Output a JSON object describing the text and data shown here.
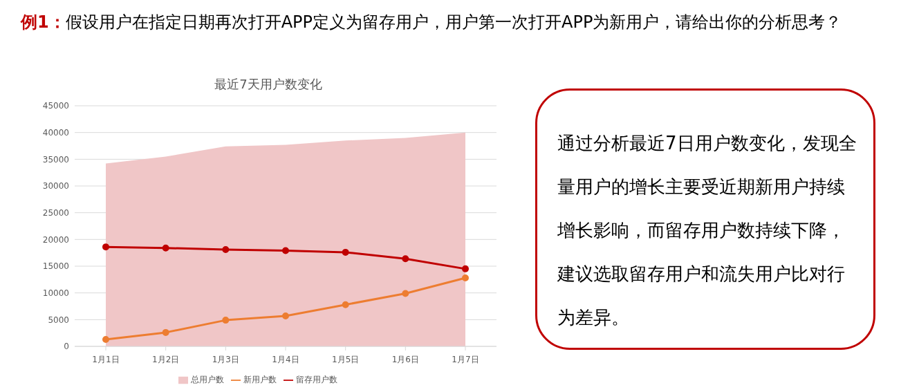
{
  "chart_data": [
    {
      "type": "line",
      "title": "最近7天用户数变化",
      "annotations": [
        "例1：",
        "假设用户在指定日期再次打开APP定义为留存用户，用户第一次打开APP为新用户，请给出你的分析思考？"
      ],
      "categories": [
        "1月1日",
        "1月2日",
        "1月3日",
        "1月4日",
        "1月5日",
        "1月6日",
        "1月7日"
      ],
      "series": [
        {
          "name": "总用户数",
          "type": "area",
          "color": "#f0c6c7",
          "values": [
            34200,
            35500,
            37400,
            37700,
            38500,
            39000,
            40000
          ]
        },
        {
          "name": "新用户数",
          "type": "line",
          "color": "#ed7d31",
          "marker": "circle",
          "values": [
            1300,
            2600,
            4900,
            5700,
            7800,
            9900,
            12800
          ]
        },
        {
          "name": "留存用户数",
          "type": "line",
          "color": "#c00000",
          "marker": "circle",
          "values": [
            18600,
            18400,
            18100,
            17900,
            17600,
            16400,
            14500
          ]
        }
      ],
      "ylim": [
        0,
        45000
      ],
      "yticks": [
        0,
        5000,
        10000,
        15000,
        20000,
        25000,
        30000,
        35000,
        40000,
        45000
      ],
      "grid": "y",
      "legend": "bottom",
      "line_style": "solid"
    },
    {
      "type": "other",
      "annotations": [
        "通过分析最近7日用户数变化，发现全量用户的增长主要受近期新用户持续增长影响，而留存用户数持续下降，建议选取留存用户和流失用户比对行为差异。"
      ]
    }
  ]
}
